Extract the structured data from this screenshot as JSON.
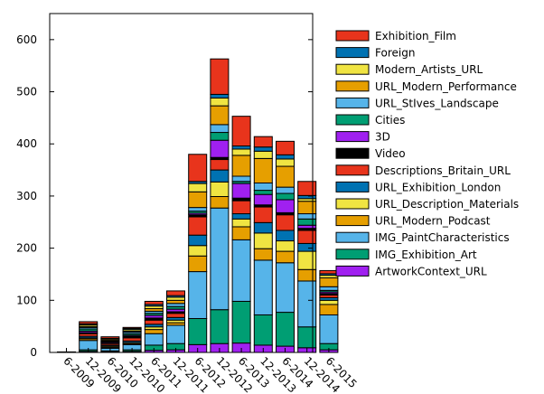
{
  "chart_data": {
    "type": "bar",
    "stacked": true,
    "categories": [
      "6-2009",
      "12-2009",
      "6-2010",
      "12-2010",
      "6-2011",
      "12-2011",
      "6-2012",
      "12-2012",
      "6-2013",
      "12-2013",
      "6-2014",
      "12-2014",
      "6-2015"
    ],
    "ylim": [
      0,
      650
    ],
    "yticks": [
      0,
      100,
      200,
      300,
      400,
      500,
      600
    ],
    "grid": false,
    "legend_position": "right",
    "series": [
      {
        "name": "ArtworkContext_URL",
        "color": "#a020f0",
        "values": [
          0,
          2,
          1,
          2,
          4,
          5,
          15,
          17,
          18,
          14,
          12,
          9,
          5
        ]
      },
      {
        "name": "IMG_Exhibition_Art",
        "color": "#009e73",
        "values": [
          0,
          3,
          2,
          3,
          10,
          12,
          50,
          65,
          80,
          58,
          65,
          40,
          12
        ]
      },
      {
        "name": "IMG_PaintCharacteristics",
        "color": "#56b4e9",
        "values": [
          1,
          18,
          5,
          10,
          22,
          35,
          90,
          195,
          118,
          105,
          95,
          88,
          55
        ]
      },
      {
        "name": "URL_Modern_Podcast",
        "color": "#e69f00",
        "values": [
          0,
          3,
          2,
          2,
          8,
          5,
          30,
          22,
          25,
          22,
          22,
          22,
          20
        ]
      },
      {
        "name": "URL_Description_Materials",
        "color": "#f0e442",
        "values": [
          0,
          2,
          2,
          2,
          5,
          5,
          20,
          28,
          15,
          30,
          20,
          35,
          8
        ]
      },
      {
        "name": "URL_Exhibition_London",
        "color": "#0072b2",
        "values": [
          0,
          3,
          2,
          3,
          5,
          5,
          20,
          23,
          10,
          20,
          20,
          15,
          5
        ]
      },
      {
        "name": "Descriptions_Britain_URL",
        "color": "#e8341c",
        "values": [
          0,
          5,
          3,
          6,
          8,
          8,
          35,
          20,
          25,
          30,
          30,
          25,
          5
        ]
      },
      {
        "name": "Video",
        "color": "#000000",
        "values": [
          0,
          2,
          1,
          3,
          4,
          3,
          4,
          4,
          5,
          4,
          4,
          4,
          3
        ]
      },
      {
        "name": "3D",
        "color": "#a020f0",
        "values": [
          0,
          3,
          2,
          2,
          5,
          5,
          3,
          33,
          28,
          20,
          25,
          6,
          3
        ]
      },
      {
        "name": "Cities",
        "color": "#009e73",
        "values": [
          0,
          4,
          1,
          3,
          4,
          5,
          4,
          15,
          4,
          8,
          12,
          12,
          3
        ]
      },
      {
        "name": "URL_StIves_Landscape",
        "color": "#56b4e9",
        "values": [
          0,
          3,
          1,
          3,
          4,
          6,
          7,
          15,
          10,
          14,
          12,
          10,
          7
        ]
      },
      {
        "name": "URL_Modern_Performance",
        "color": "#e69f00",
        "values": [
          0,
          2,
          2,
          2,
          5,
          6,
          30,
          36,
          40,
          47,
          40,
          24,
          17
        ]
      },
      {
        "name": "Modern_Artists_URL",
        "color": "#f0e442",
        "values": [
          0,
          3,
          2,
          3,
          5,
          6,
          16,
          15,
          12,
          14,
          14,
          5,
          5
        ]
      },
      {
        "name": "Foreign",
        "color": "#0072b2",
        "values": [
          0,
          2,
          1,
          2,
          3,
          3,
          4,
          7,
          6,
          8,
          8,
          6,
          3
        ]
      },
      {
        "name": "Exhibition_Film",
        "color": "#e8341c",
        "values": [
          0,
          4,
          3,
          2,
          6,
          9,
          52,
          68,
          57,
          20,
          26,
          27,
          6
        ]
      }
    ]
  }
}
